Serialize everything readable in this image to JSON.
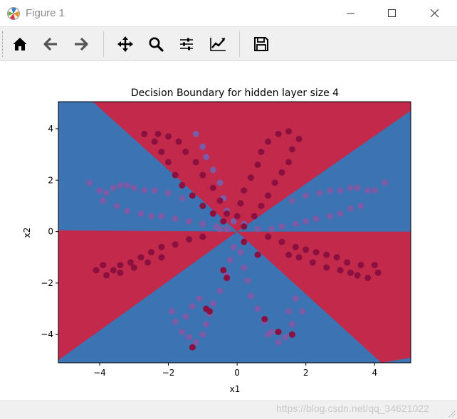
{
  "window": {
    "title": "Figure 1",
    "minimize_icon": "minimize-icon",
    "maximize_icon": "maximize-icon",
    "close_icon": "close-icon"
  },
  "toolbar": {
    "buttons": [
      {
        "name": "home",
        "icon": "home-icon"
      },
      {
        "name": "back",
        "icon": "arrow-left-icon"
      },
      {
        "name": "forward",
        "icon": "arrow-right-icon"
      },
      {
        "name": "pan",
        "icon": "move-icon"
      },
      {
        "name": "zoom",
        "icon": "magnifier-icon"
      },
      {
        "name": "subplots",
        "icon": "sliders-icon"
      },
      {
        "name": "edit-axes",
        "icon": "line-chart-icon"
      },
      {
        "name": "save",
        "icon": "floppy-disk-icon"
      }
    ]
  },
  "status": {
    "watermark": "https://blog.csdn.net/qq_34621022"
  },
  "colors": {
    "class0": "#3b73b3",
    "class1": "#c2294a",
    "point0": "#7b5aa6",
    "point1": "#8b1040"
  },
  "chart_data": {
    "type": "scatter",
    "title": "Decision Boundary for hidden layer size 4",
    "xlabel": "x1",
    "ylabel": "x2",
    "xlim": [
      -5.2,
      5.05
    ],
    "ylim": [
      -5.1,
      5.05
    ],
    "xticks": [
      -4,
      -2,
      0,
      2,
      4
    ],
    "yticks": [
      -4,
      -2,
      0,
      2,
      4
    ],
    "xtick_labels": [
      "−4",
      "−2",
      "0",
      "2",
      "4"
    ],
    "ytick_labels": [
      "−4",
      "−2",
      "0",
      "2",
      "4"
    ],
    "background": "decision regions: blue and red wedges from the origin",
    "dataset": "flower (8 petals)",
    "series": [
      {
        "class": 0,
        "points": [
          [
            -4.3,
            1.9
          ],
          [
            -4.0,
            1.6
          ],
          [
            -3.8,
            1.5
          ],
          [
            -3.6,
            1.7
          ],
          [
            -3.4,
            1.8
          ],
          [
            -3.2,
            1.8
          ],
          [
            -3.0,
            1.7
          ],
          [
            -2.7,
            1.6
          ],
          [
            -2.4,
            1.6
          ],
          [
            -2.0,
            1.5
          ],
          [
            -1.6,
            1.3
          ],
          [
            -3.9,
            1.2
          ],
          [
            -3.5,
            1.0
          ],
          [
            -3.2,
            0.8
          ],
          [
            -2.8,
            0.7
          ],
          [
            -2.5,
            0.6
          ],
          [
            -2.2,
            0.6
          ],
          [
            -1.8,
            0.5
          ],
          [
            -1.4,
            0.4
          ],
          [
            -1.0,
            0.3
          ],
          [
            -0.6,
            0.2
          ],
          [
            -0.3,
            0.1
          ],
          [
            4.3,
            1.9
          ],
          [
            4.0,
            1.6
          ],
          [
            3.8,
            1.6
          ],
          [
            3.5,
            1.7
          ],
          [
            3.3,
            1.7
          ],
          [
            3.0,
            1.6
          ],
          [
            2.7,
            1.6
          ],
          [
            2.4,
            1.5
          ],
          [
            2.0,
            1.4
          ],
          [
            1.6,
            1.2
          ],
          [
            3.6,
            1.0
          ],
          [
            3.3,
            0.9
          ],
          [
            3.0,
            0.7
          ],
          [
            2.7,
            0.6
          ],
          [
            2.3,
            0.5
          ],
          [
            2.0,
            0.4
          ],
          [
            1.7,
            0.3
          ],
          [
            1.3,
            0.2
          ],
          [
            1.0,
            0.1
          ],
          [
            0.6,
            0.1
          ],
          [
            -1.9,
            -3.1
          ],
          [
            -1.8,
            -3.5
          ],
          [
            -1.6,
            -3.9
          ],
          [
            -1.4,
            -4.1
          ],
          [
            -1.2,
            -4.3
          ],
          [
            -1.0,
            -4.0
          ],
          [
            -0.9,
            -3.6
          ],
          [
            -0.8,
            -3.2
          ],
          [
            -0.7,
            -2.8
          ],
          [
            -0.5,
            -2.3
          ],
          [
            -0.3,
            -1.7
          ],
          [
            -0.2,
            -1.1
          ],
          [
            -0.1,
            -0.6
          ],
          [
            -1.5,
            -3.3
          ],
          [
            -1.3,
            -2.9
          ],
          [
            -1.1,
            -2.6
          ],
          [
            1.5,
            -3.1
          ],
          [
            1.6,
            -3.6
          ],
          [
            1.4,
            -4.1
          ],
          [
            1.2,
            -4.3
          ],
          [
            1.0,
            -3.9
          ],
          [
            0.8,
            -3.5
          ],
          [
            0.6,
            -3.0
          ],
          [
            0.4,
            -2.5
          ],
          [
            0.3,
            -1.9
          ],
          [
            0.2,
            -1.4
          ],
          [
            0.1,
            -0.8
          ],
          [
            1.7,
            -2.6
          ],
          [
            1.9,
            -3.1
          ],
          [
            0.9,
            -4.0
          ],
          [
            -1.2,
            3.8
          ],
          [
            -1.0,
            3.3
          ],
          [
            -0.9,
            2.9
          ],
          [
            -0.7,
            2.4
          ],
          [
            -0.5,
            1.9
          ],
          [
            -0.4,
            1.3
          ],
          [
            -0.3,
            0.8
          ],
          [
            0.2,
            0.3
          ],
          [
            -0.1,
            0.4
          ],
          [
            -0.5,
            0.1
          ]
        ]
      },
      {
        "class": 1,
        "points": [
          [
            -2.7,
            3.8
          ],
          [
            -2.4,
            3.5
          ],
          [
            -2.2,
            3.1
          ],
          [
            -2.0,
            2.7
          ],
          [
            -1.8,
            2.2
          ],
          [
            -1.6,
            1.8
          ],
          [
            -1.3,
            1.4
          ],
          [
            -1.0,
            1.0
          ],
          [
            -0.7,
            0.7
          ],
          [
            -0.4,
            0.4
          ],
          [
            -2.3,
            3.8
          ],
          [
            -2.0,
            3.7
          ],
          [
            -1.7,
            3.5
          ],
          [
            -1.5,
            3.1
          ],
          [
            -1.2,
            2.7
          ],
          [
            -1.0,
            2.2
          ],
          [
            -0.7,
            1.7
          ],
          [
            -0.5,
            1.2
          ],
          [
            -0.3,
            0.7
          ],
          [
            1.5,
            3.9
          ],
          [
            1.8,
            3.6
          ],
          [
            1.6,
            3.2
          ],
          [
            1.5,
            2.7
          ],
          [
            1.3,
            2.3
          ],
          [
            1.1,
            1.9
          ],
          [
            0.9,
            1.4
          ],
          [
            0.7,
            1.0
          ],
          [
            0.5,
            0.6
          ],
          [
            0.2,
            0.2
          ],
          [
            1.2,
            3.8
          ],
          [
            0.9,
            3.5
          ],
          [
            0.7,
            3.1
          ],
          [
            0.6,
            2.6
          ],
          [
            0.4,
            2.1
          ],
          [
            0.2,
            1.6
          ],
          [
            0.1,
            1.1
          ],
          [
            0.0,
            0.6
          ],
          [
            -4.1,
            -1.5
          ],
          [
            -3.9,
            -1.3
          ],
          [
            -3.6,
            -1.5
          ],
          [
            -3.4,
            -1.3
          ],
          [
            -3.1,
            -1.2
          ],
          [
            -2.8,
            -1.0
          ],
          [
            -2.5,
            -0.8
          ],
          [
            -2.2,
            -0.6
          ],
          [
            -1.8,
            -0.5
          ],
          [
            -1.4,
            -0.3
          ],
          [
            -1.0,
            -0.2
          ],
          [
            -3.8,
            -1.7
          ],
          [
            -3.4,
            -1.6
          ],
          [
            -3.0,
            -1.4
          ],
          [
            -2.6,
            -1.2
          ],
          [
            -2.2,
            -1.0
          ],
          [
            4.0,
            -1.3
          ],
          [
            4.1,
            -1.6
          ],
          [
            3.8,
            -1.8
          ],
          [
            3.5,
            -1.7
          ],
          [
            3.2,
            -1.2
          ],
          [
            2.9,
            -1.0
          ],
          [
            2.6,
            -0.9
          ],
          [
            2.3,
            -0.8
          ],
          [
            2.0,
            -0.7
          ],
          [
            1.7,
            -0.6
          ],
          [
            1.3,
            -0.4
          ],
          [
            0.9,
            -0.2
          ],
          [
            3.6,
            -1.3
          ],
          [
            3.3,
            -1.6
          ],
          [
            3.0,
            -1.5
          ],
          [
            2.6,
            -1.4
          ],
          [
            2.2,
            -1.2
          ],
          [
            1.8,
            -1.0
          ],
          [
            1.5,
            -0.9
          ],
          [
            1.6,
            -4.0
          ],
          [
            1.2,
            -3.9
          ],
          [
            -0.8,
            -3.1
          ],
          [
            -0.3,
            -1.8
          ],
          [
            0.8,
            -3.4
          ],
          [
            0.2,
            -0.4
          ],
          [
            -0.9,
            -3.0
          ],
          [
            -0.4,
            -1.5
          ],
          [
            -1.3,
            -4.5
          ],
          [
            0.6,
            -0.9
          ]
        ]
      }
    ]
  }
}
